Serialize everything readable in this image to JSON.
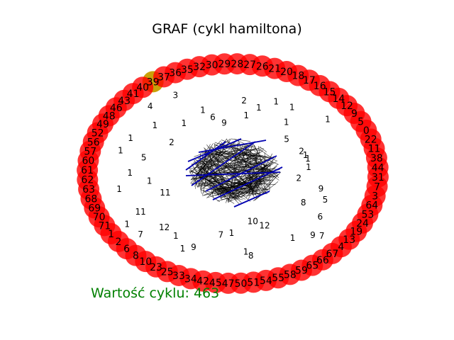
{
  "title": "GRAF (cykl hamiltona)",
  "cycle_value": {
    "label": "Wartość cyklu:",
    "value": "463"
  },
  "colors": {
    "node": "#ff0000",
    "start_node": "#c9a20a",
    "edge": "#000000",
    "cycle_edge": "#0000b0",
    "value_text": "#008000"
  },
  "node_labels": [
    "39",
    "37",
    "36",
    "35",
    "32",
    "30",
    "29",
    "28",
    "27",
    "26",
    "21",
    "20",
    "18",
    "17",
    "16",
    "15",
    "14",
    "12",
    "9",
    "5",
    "0",
    "22",
    "11",
    "38",
    "44",
    "31",
    "7",
    "3",
    "64",
    "53",
    "24",
    "19",
    "13",
    "4",
    "67",
    "66",
    "65",
    "59",
    "58",
    "55",
    "54",
    "51",
    "50",
    "47",
    "45",
    "42",
    "34",
    "33",
    "25",
    "23",
    "10",
    "8",
    "6",
    "2",
    "1",
    "71",
    "70",
    "69",
    "68",
    "63",
    "62",
    "61",
    "60",
    "57",
    "56",
    "52",
    "49",
    "48",
    "46",
    "43",
    "41",
    "40"
  ],
  "start_node": "39",
  "edge_weight_labels": [
    "2",
    "9",
    "5",
    "8",
    "6",
    "7",
    "9",
    "1",
    "12",
    "10",
    "8",
    "1",
    "1",
    "7",
    "9",
    "1",
    "1",
    "12",
    "7",
    "1",
    "11",
    "11",
    "1",
    "1",
    "1",
    "5",
    "1",
    "1",
    "2",
    "1",
    "4",
    "1",
    "3",
    "1",
    "6",
    "9",
    "2",
    "1",
    "1",
    "1",
    "1",
    "1",
    "5",
    "1",
    "2",
    "1",
    "1",
    "1"
  ]
}
